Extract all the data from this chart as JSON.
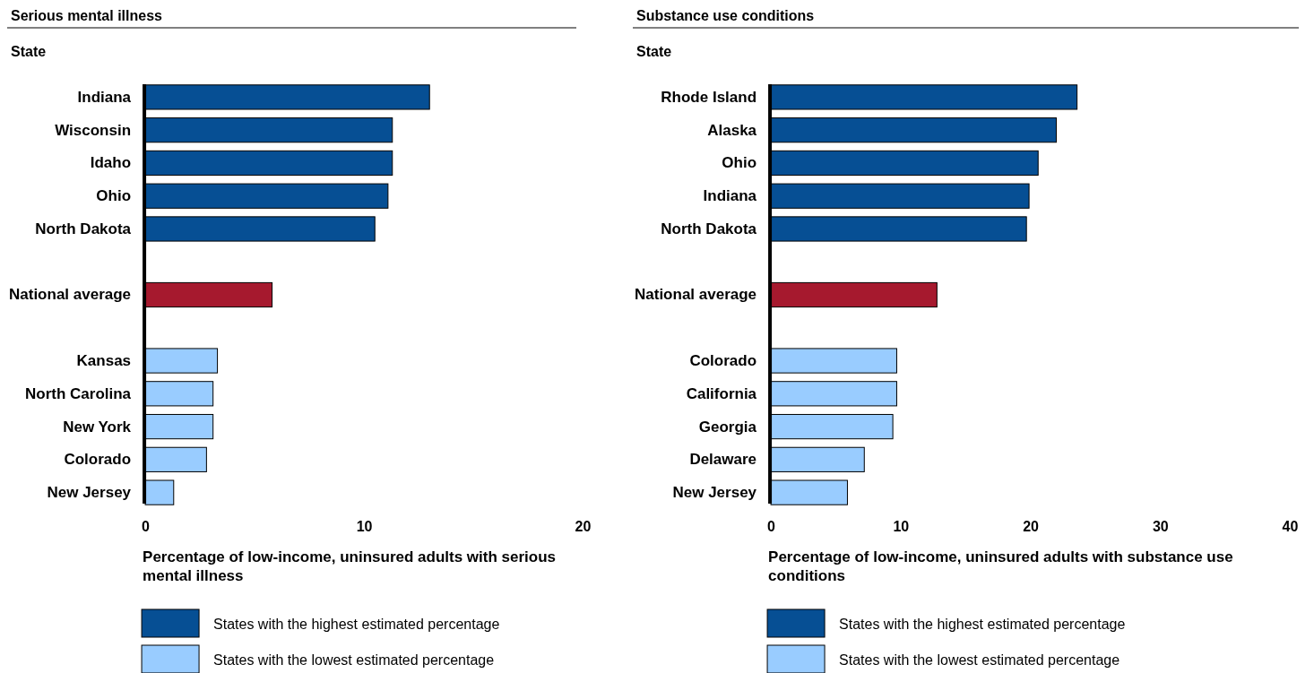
{
  "chart_data": [
    {
      "type": "bar",
      "orientation": "horizontal",
      "title": "Serious mental illness",
      "ylabel": "State",
      "xlabel": "Percentage of low-income, uninsured adults with serious mental illness",
      "categories": [
        "Indiana",
        "Wisconsin",
        "Idaho",
        "Ohio",
        "North Dakota",
        null,
        "National average",
        null,
        "Kansas",
        "North Carolina",
        "New York",
        "Colorado",
        "New Jersey"
      ],
      "series": [
        {
          "name": "States with the highest estimated percentage",
          "color": "#064f94",
          "values": [
            13.0,
            11.3,
            11.3,
            11.1,
            10.5,
            null,
            null,
            null,
            null,
            null,
            null,
            null,
            null
          ]
        },
        {
          "color": "#a6192e",
          "values": [
            null,
            null,
            null,
            null,
            null,
            null,
            5.8,
            null,
            null,
            null,
            null,
            null,
            null
          ]
        },
        {
          "name": "States with the lowest estimated percentage",
          "color": "#99ccff",
          "values": [
            null,
            null,
            null,
            null,
            null,
            null,
            null,
            null,
            3.3,
            3.1,
            3.1,
            2.8,
            1.3
          ]
        }
      ],
      "xlim": [
        0,
        20
      ],
      "xticks": [
        0,
        10,
        20
      ],
      "legend": "bottom"
    },
    {
      "type": "bar",
      "orientation": "horizontal",
      "title": "Substance use conditions",
      "ylabel": "State",
      "xlabel": "Percentage of low-income, uninsured adults with substance use conditions",
      "categories": [
        "Rhode Island",
        "Alaska",
        "Ohio",
        "Indiana",
        "North Dakota",
        null,
        "National average",
        null,
        "Colorado",
        "California",
        "Georgia",
        "Delaware",
        "New Jersey"
      ],
      "series": [
        {
          "name": "States with the highest estimated percentage",
          "color": "#064f94",
          "values": [
            23.6,
            22.0,
            20.6,
            19.9,
            19.7,
            null,
            null,
            null,
            null,
            null,
            null,
            null,
            null
          ]
        },
        {
          "color": "#a6192e",
          "values": [
            null,
            null,
            null,
            null,
            null,
            null,
            12.8,
            null,
            null,
            null,
            null,
            null,
            null
          ]
        },
        {
          "name": "States with the lowest estimated percentage",
          "color": "#99ccff",
          "values": [
            null,
            null,
            null,
            null,
            null,
            null,
            null,
            null,
            9.7,
            9.7,
            9.4,
            7.2,
            5.9
          ]
        }
      ],
      "xlim": [
        0,
        40
      ],
      "xticks": [
        0,
        10,
        20,
        30,
        40
      ],
      "legend": "bottom"
    }
  ]
}
